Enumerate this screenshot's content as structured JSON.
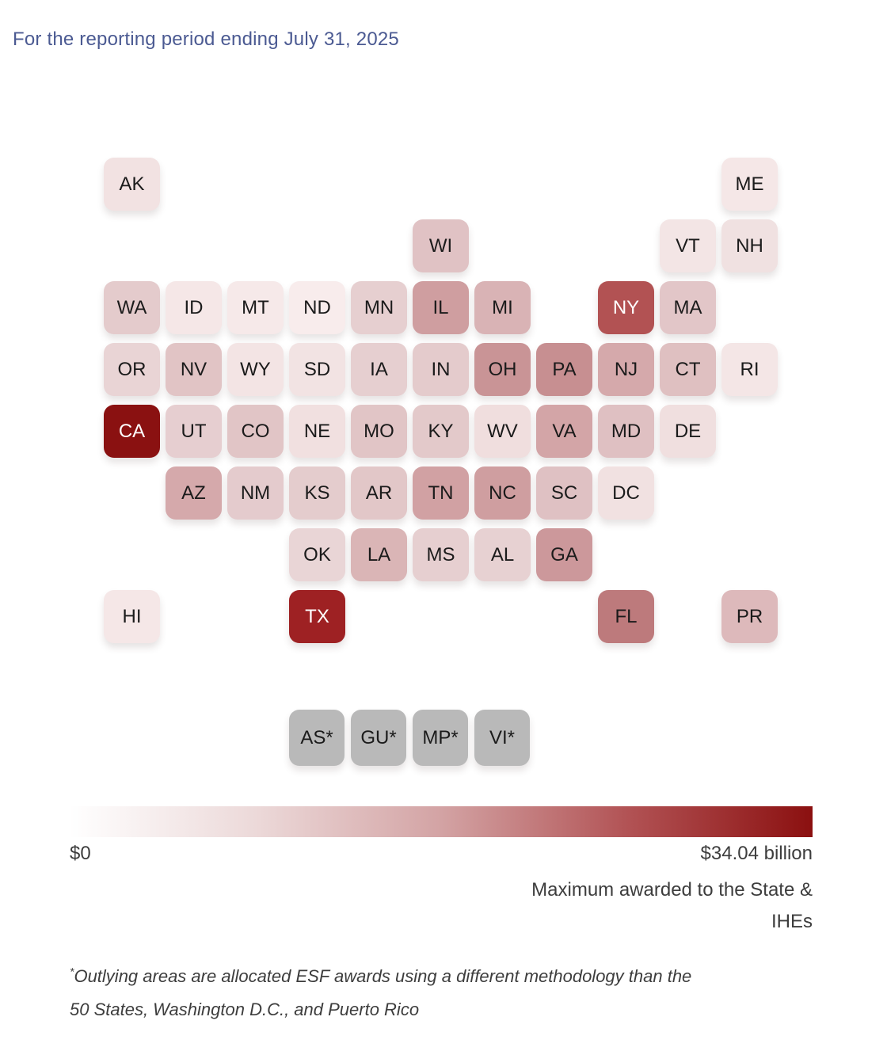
{
  "header": {
    "title": "For the reporting period ending July 31, 2025",
    "title_color": "#4b5a92"
  },
  "chart_data": {
    "type": "heatmap",
    "subtype": "us-state-tile-grid-cartogram",
    "note": "States colored by maximum ESF award amount; no per-state numeric labels are shown, only the color encoding.",
    "color_scale": {
      "min_value_label": "$0",
      "max_value_label": "$34.04 billion",
      "gradient_stops": [
        "#ffffff",
        "#ecd9d9",
        "#d3a3a4",
        "#b25355",
        "#8b1010"
      ],
      "territory_color": "#b9b9b9"
    },
    "tiles": [
      {
        "label": "AK",
        "row": 0,
        "col": 1,
        "color": "#f2e2e2",
        "text": "dark"
      },
      {
        "label": "ME",
        "row": 0,
        "col": 11,
        "color": "#f5e7e7",
        "text": "dark"
      },
      {
        "label": "WI",
        "row": 1,
        "col": 6,
        "color": "#e0c2c4",
        "text": "dark"
      },
      {
        "label": "VT",
        "row": 1,
        "col": 10,
        "color": "#f3e5e5",
        "text": "dark"
      },
      {
        "label": "NH",
        "row": 1,
        "col": 11,
        "color": "#f0e1e1",
        "text": "dark"
      },
      {
        "label": "WA",
        "row": 2,
        "col": 1,
        "color": "#e4cbcc",
        "text": "dark"
      },
      {
        "label": "ID",
        "row": 2,
        "col": 2,
        "color": "#f5e7e7",
        "text": "dark"
      },
      {
        "label": "MT",
        "row": 2,
        "col": 3,
        "color": "#f6e9e9",
        "text": "dark"
      },
      {
        "label": "ND",
        "row": 2,
        "col": 4,
        "color": "#f8ecec",
        "text": "dark"
      },
      {
        "label": "MN",
        "row": 2,
        "col": 5,
        "color": "#e6cfd0",
        "text": "dark"
      },
      {
        "label": "IL",
        "row": 2,
        "col": 6,
        "color": "#cf9ea0",
        "text": "dark"
      },
      {
        "label": "MI",
        "row": 2,
        "col": 7,
        "color": "#d9b3b5",
        "text": "dark"
      },
      {
        "label": "NY",
        "row": 2,
        "col": 9,
        "color": "#b25253",
        "text": "light"
      },
      {
        "label": "MA",
        "row": 2,
        "col": 10,
        "color": "#e2c6c8",
        "text": "dark"
      },
      {
        "label": "OR",
        "row": 3,
        "col": 1,
        "color": "#e9d4d5",
        "text": "dark"
      },
      {
        "label": "NV",
        "row": 3,
        "col": 2,
        "color": "#e1c4c5",
        "text": "dark"
      },
      {
        "label": "WY",
        "row": 3,
        "col": 3,
        "color": "#f3e4e4",
        "text": "dark"
      },
      {
        "label": "SD",
        "row": 3,
        "col": 4,
        "color": "#f2e3e3",
        "text": "dark"
      },
      {
        "label": "IA",
        "row": 3,
        "col": 5,
        "color": "#e6cfd0",
        "text": "dark"
      },
      {
        "label": "IN",
        "row": 3,
        "col": 6,
        "color": "#e4cbcc",
        "text": "dark"
      },
      {
        "label": "OH",
        "row": 3,
        "col": 7,
        "color": "#c99496",
        "text": "dark"
      },
      {
        "label": "PA",
        "row": 3,
        "col": 8,
        "color": "#c78f91",
        "text": "dark"
      },
      {
        "label": "NJ",
        "row": 3,
        "col": 9,
        "color": "#d5a9ab",
        "text": "dark"
      },
      {
        "label": "CT",
        "row": 3,
        "col": 10,
        "color": "#dfc0c1",
        "text": "dark"
      },
      {
        "label": "RI",
        "row": 3,
        "col": 11,
        "color": "#f4e6e6",
        "text": "dark"
      },
      {
        "label": "CA",
        "row": 4,
        "col": 1,
        "color": "#8a1111",
        "text": "light"
      },
      {
        "label": "UT",
        "row": 4,
        "col": 2,
        "color": "#e6ced0",
        "text": "dark"
      },
      {
        "label": "CO",
        "row": 4,
        "col": 3,
        "color": "#e1c5c6",
        "text": "dark"
      },
      {
        "label": "NE",
        "row": 4,
        "col": 4,
        "color": "#f1e0e0",
        "text": "dark"
      },
      {
        "label": "MO",
        "row": 4,
        "col": 5,
        "color": "#e1c5c6",
        "text": "dark"
      },
      {
        "label": "KY",
        "row": 4,
        "col": 6,
        "color": "#e3c9ca",
        "text": "dark"
      },
      {
        "label": "WV",
        "row": 4,
        "col": 7,
        "color": "#f0dede",
        "text": "dark"
      },
      {
        "label": "VA",
        "row": 4,
        "col": 8,
        "color": "#d3a5a7",
        "text": "dark"
      },
      {
        "label": "MD",
        "row": 4,
        "col": 9,
        "color": "#dfc0c2",
        "text": "dark"
      },
      {
        "label": "DE",
        "row": 4,
        "col": 10,
        "color": "#f0dfdf",
        "text": "dark"
      },
      {
        "label": "AZ",
        "row": 5,
        "col": 2,
        "color": "#d5a9ab",
        "text": "dark"
      },
      {
        "label": "NM",
        "row": 5,
        "col": 3,
        "color": "#e4cbcd",
        "text": "dark"
      },
      {
        "label": "KS",
        "row": 5,
        "col": 4,
        "color": "#e4cccd",
        "text": "dark"
      },
      {
        "label": "AR",
        "row": 5,
        "col": 5,
        "color": "#e2c7c8",
        "text": "dark"
      },
      {
        "label": "TN",
        "row": 5,
        "col": 6,
        "color": "#d1a1a3",
        "text": "dark"
      },
      {
        "label": "NC",
        "row": 5,
        "col": 7,
        "color": "#cf9ea0",
        "text": "dark"
      },
      {
        "label": "SC",
        "row": 5,
        "col": 8,
        "color": "#dfc1c3",
        "text": "dark"
      },
      {
        "label": "DC",
        "row": 5,
        "col": 9,
        "color": "#f1e1e1",
        "text": "dark"
      },
      {
        "label": "OK",
        "row": 6,
        "col": 4,
        "color": "#e9d5d6",
        "text": "dark"
      },
      {
        "label": "LA",
        "row": 6,
        "col": 5,
        "color": "#dab5b6",
        "text": "dark"
      },
      {
        "label": "MS",
        "row": 6,
        "col": 6,
        "color": "#e6cfd0",
        "text": "dark"
      },
      {
        "label": "AL",
        "row": 6,
        "col": 7,
        "color": "#e7d1d2",
        "text": "dark"
      },
      {
        "label": "GA",
        "row": 6,
        "col": 8,
        "color": "#cc989b",
        "text": "dark"
      },
      {
        "label": "HI",
        "row": 7,
        "col": 1,
        "color": "#f5e7e7",
        "text": "dark"
      },
      {
        "label": "TX",
        "row": 7,
        "col": 4,
        "color": "#9e2123",
        "text": "light"
      },
      {
        "label": "FL",
        "row": 7,
        "col": 9,
        "color": "#bd7a7c",
        "text": "dark"
      },
      {
        "label": "PR",
        "row": 7,
        "col": 11,
        "color": "#ddb9bb",
        "text": "dark"
      },
      {
        "label": "AS*",
        "row": 8,
        "col": 4,
        "color": "#b9b9b9",
        "text": "dark"
      },
      {
        "label": "GU*",
        "row": 8,
        "col": 5,
        "color": "#b9b9b9",
        "text": "dark"
      },
      {
        "label": "MP*",
        "row": 8,
        "col": 6,
        "color": "#b9b9b9",
        "text": "dark"
      },
      {
        "label": "VI*",
        "row": 8,
        "col": 7,
        "color": "#b9b9b9",
        "text": "dark"
      }
    ],
    "legend": {
      "min_label": "$0",
      "max_label": "$34.04 billion",
      "caption_line1": "Maximum awarded to the State &",
      "caption_line2": "IHEs"
    }
  },
  "footnote": {
    "marker": "*",
    "line1": "Outlying areas are allocated ESF awards using a different methodology than the",
    "line2": "50 States, Washington D.C., and Puerto Rico"
  }
}
